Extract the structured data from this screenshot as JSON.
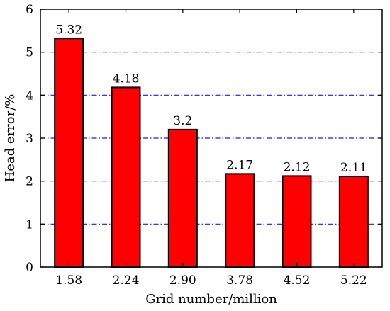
{
  "chart_data": {
    "type": "bar",
    "title": "",
    "xlabel": "Grid number/million",
    "ylabel": "Head error/%",
    "categories": [
      "1.58",
      "2.24",
      "2.90",
      "3.78",
      "4.52",
      "5.22"
    ],
    "values": [
      5.32,
      4.18,
      3.2,
      2.17,
      2.12,
      2.11
    ],
    "data_labels": [
      "5.32",
      "4.18",
      "3.2",
      "2.17",
      "2.12",
      "2.11"
    ],
    "ylim": [
      0,
      6
    ],
    "yticks": [
      0,
      1,
      2,
      3,
      4,
      5,
      6
    ],
    "grid": "horizontal dash-dot",
    "legend": "none",
    "colors": {
      "bar_fill": "#ff0000",
      "bar_stroke": "#000000",
      "grid": "#1a1aff",
      "axis": "#000000"
    }
  }
}
